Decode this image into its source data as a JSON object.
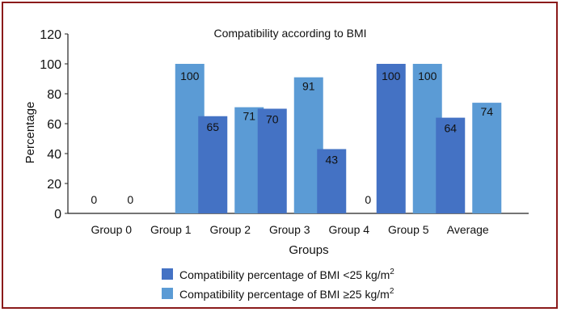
{
  "chart_data": {
    "type": "bar",
    "title": "Compatibility according to BMI",
    "xlabel": "Groups",
    "ylabel": "Percentage",
    "ylim": [
      0,
      120
    ],
    "yticks": [
      0,
      20,
      40,
      60,
      80,
      100,
      120
    ],
    "grid": false,
    "legend_position": "bottom",
    "categories": [
      "Group 0",
      "Group 1",
      "Group 2",
      "Group 3",
      "Group 4",
      "Group 5",
      "Average"
    ],
    "series": [
      {
        "name": "Compatibility percentage of BMI <25 kg/m",
        "name_superscript": "2",
        "color": "#4472c4",
        "values": [
          0,
          null,
          65,
          70,
          43,
          100,
          64
        ],
        "labels": [
          "0",
          "",
          "65",
          "70",
          "43",
          "100",
          "64"
        ]
      },
      {
        "name": "Compatibility percentage of BMI ≥25 kg/m",
        "name_superscript": "2",
        "color": "#5b9bd5",
        "values": [
          0,
          100,
          71,
          91,
          0,
          100,
          74
        ],
        "labels": [
          "0",
          "100",
          "71",
          "91",
          "0",
          "100",
          "74"
        ]
      }
    ]
  }
}
